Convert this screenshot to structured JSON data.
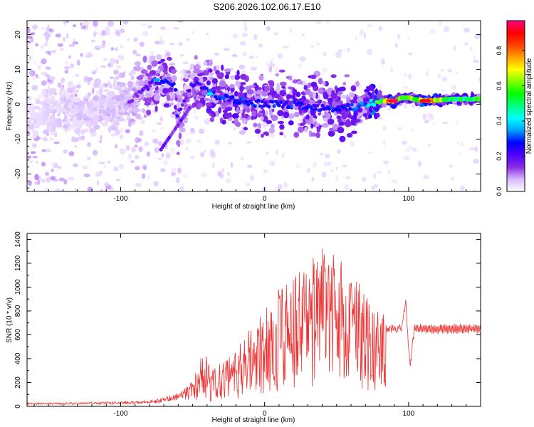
{
  "title": "S206.2026.102.06.17.E10",
  "chart_data": [
    {
      "type": "heatmap",
      "xlabel": "Height of straight line (km)",
      "ylabel": "Frequency (Hz)",
      "xlim": [
        -165,
        150
      ],
      "ylim": [
        -25,
        24
      ],
      "xticks": [
        -100,
        0,
        100
      ],
      "yticks": [
        -20,
        -10,
        0,
        10,
        20
      ],
      "colorbar": {
        "label": "Normalized spectral amplitude",
        "range": [
          0.0,
          0.97
        ],
        "ticks": [
          0.0,
          0.2,
          0.4,
          0.6,
          0.8
        ],
        "colors": [
          "#ffffff",
          "#d6b8ff",
          "#8a2be2",
          "#5000ff",
          "#0000ff",
          "#00a0ff",
          "#00ffff",
          "#00ff80",
          "#00ff00",
          "#80ff00",
          "#ffff00",
          "#ffa000",
          "#ff4000",
          "#ff0000",
          "#ff0080"
        ]
      },
      "ridge": [
        {
          "x": -160,
          "freq": -2,
          "amp": 0.08
        },
        {
          "x": -130,
          "freq": -2,
          "amp": 0.1
        },
        {
          "x": -100,
          "freq": 0,
          "amp": 0.12
        },
        {
          "x": -90,
          "freq": 2,
          "amp": 0.15
        },
        {
          "x": -75,
          "freq": 7,
          "amp": 0.25
        },
        {
          "x": -62,
          "freq": 5,
          "amp": 0.3
        },
        {
          "x": -60,
          "freq": -8,
          "amp": 0.22
        },
        {
          "x": -70,
          "freq": -13,
          "amp": 0.15
        },
        {
          "x": -52,
          "freq": 5,
          "amp": 0.2
        },
        {
          "x": -45,
          "freq": 6,
          "amp": 0.25
        },
        {
          "x": -38,
          "freq": 3,
          "amp": 0.3
        },
        {
          "x": -20,
          "freq": 1,
          "amp": 0.3
        },
        {
          "x": 0,
          "freq": 0,
          "amp": 0.28
        },
        {
          "x": 20,
          "freq": 0,
          "amp": 0.3
        },
        {
          "x": 40,
          "freq": -1,
          "amp": 0.28
        },
        {
          "x": 60,
          "freq": -1,
          "amp": 0.3
        },
        {
          "x": 70,
          "freq": 0,
          "amp": 0.35
        },
        {
          "x": 80,
          "freq": 1,
          "amp": 0.6
        },
        {
          "x": 90,
          "freq": 1,
          "amp": 0.9
        },
        {
          "x": 96,
          "freq": 2,
          "amp": 0.5
        },
        {
          "x": 112,
          "freq": 1,
          "amp": 0.85
        },
        {
          "x": 130,
          "freq": 1.5,
          "amp": 0.55
        },
        {
          "x": 148,
          "freq": 1.5,
          "amp": 0.55
        }
      ]
    },
    {
      "type": "line",
      "xlabel": "Height of straight line (km)",
      "ylabel": "SNR (10 * v/v)",
      "xlim": [
        -165,
        150
      ],
      "ylim": [
        0,
        1450
      ],
      "xticks": [
        -100,
        0,
        100
      ],
      "yticks": [
        0,
        200,
        400,
        600,
        800,
        1000,
        1200,
        1400
      ],
      "color": "#ee3333",
      "envelope": [
        {
          "x": -165,
          "y": 30
        },
        {
          "x": -100,
          "y": 40
        },
        {
          "x": -75,
          "y": 60
        },
        {
          "x": -60,
          "y": 110
        },
        {
          "x": -50,
          "y": 220
        },
        {
          "x": -42,
          "y": 480
        },
        {
          "x": -36,
          "y": 300
        },
        {
          "x": -25,
          "y": 430
        },
        {
          "x": -12,
          "y": 620
        },
        {
          "x": 0,
          "y": 850
        },
        {
          "x": 10,
          "y": 1000
        },
        {
          "x": 20,
          "y": 1080
        },
        {
          "x": 30,
          "y": 1200
        },
        {
          "x": 40,
          "y": 1360
        },
        {
          "x": 45,
          "y": 1320
        },
        {
          "x": 55,
          "y": 1200
        },
        {
          "x": 65,
          "y": 1050
        },
        {
          "x": 75,
          "y": 900
        },
        {
          "x": 83,
          "y": 780
        },
        {
          "x": 85,
          "y": 650
        },
        {
          "x": 95,
          "y": 650
        },
        {
          "x": 98,
          "y": 880
        },
        {
          "x": 101,
          "y": 320
        },
        {
          "x": 104,
          "y": 650
        },
        {
          "x": 150,
          "y": 650
        }
      ]
    }
  ]
}
